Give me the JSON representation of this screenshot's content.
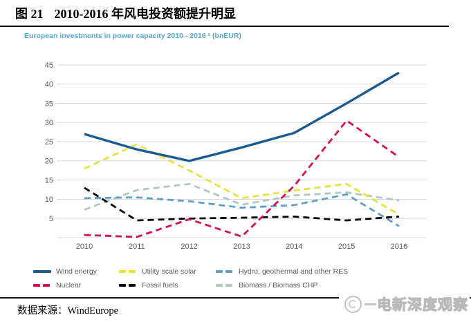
{
  "header": {
    "figure_label": "图 21",
    "title": "2010-2016 年风电投资额提升明显"
  },
  "chart": {
    "subtitle": "European investments in power capacity 2010 - 2016 ¹ (bnEUR)"
  },
  "chart_data": {
    "type": "line",
    "title": "European investments in power capacity 2010 - 2016 (bnEUR)",
    "x": [
      2010,
      2011,
      2012,
      2013,
      2014,
      2015,
      2016
    ],
    "xlabel": "",
    "ylabel": "",
    "ylim": [
      0,
      45
    ],
    "yticks": [
      5,
      10,
      15,
      20,
      25,
      30,
      35,
      40,
      45
    ],
    "grid": true,
    "legend_position": "bottom",
    "colors": {
      "grid": "#d8d8d8",
      "tick_text": "#595959",
      "subtitle_blue": "#55a6d8"
    },
    "series": [
      {
        "name": "Wind energy",
        "color": "#185a94",
        "style": "solid",
        "values": [
          27.0,
          23.0,
          20.0,
          23.5,
          27.3,
          35.0,
          43.0
        ]
      },
      {
        "name": "Utility scale solar",
        "color": "#e7e13a",
        "style": "dashed",
        "values": [
          18.0,
          24.3,
          17.5,
          10.3,
          12.3,
          14.0,
          6.0
        ]
      },
      {
        "name": "Hydro, geothermal and other RES",
        "color": "#5d9ec9",
        "style": "dashed",
        "values": [
          10.3,
          10.5,
          9.5,
          7.8,
          8.5,
          11.3,
          3.0
        ]
      },
      {
        "name": "Nuclear",
        "color": "#d60e50",
        "style": "dashed",
        "values": [
          0.7,
          0.2,
          4.8,
          0.3,
          13.5,
          30.5,
          21.0
        ]
      },
      {
        "name": "Fossil fuels",
        "color": "#000000",
        "style": "dashed",
        "values": [
          13.0,
          4.5,
          5.0,
          5.2,
          5.5,
          4.5,
          5.5
        ]
      },
      {
        "name": "Biomass / Biomass CHP",
        "color": "#adc9bb",
        "style": "dashed",
        "values": [
          7.3,
          12.4,
          14.0,
          8.6,
          11.0,
          11.8,
          9.7
        ]
      }
    ]
  },
  "footer": {
    "source_label": "数据来源：",
    "source": "WindEurope",
    "watermark_dash": "—",
    "watermark": "电新深度观察"
  }
}
